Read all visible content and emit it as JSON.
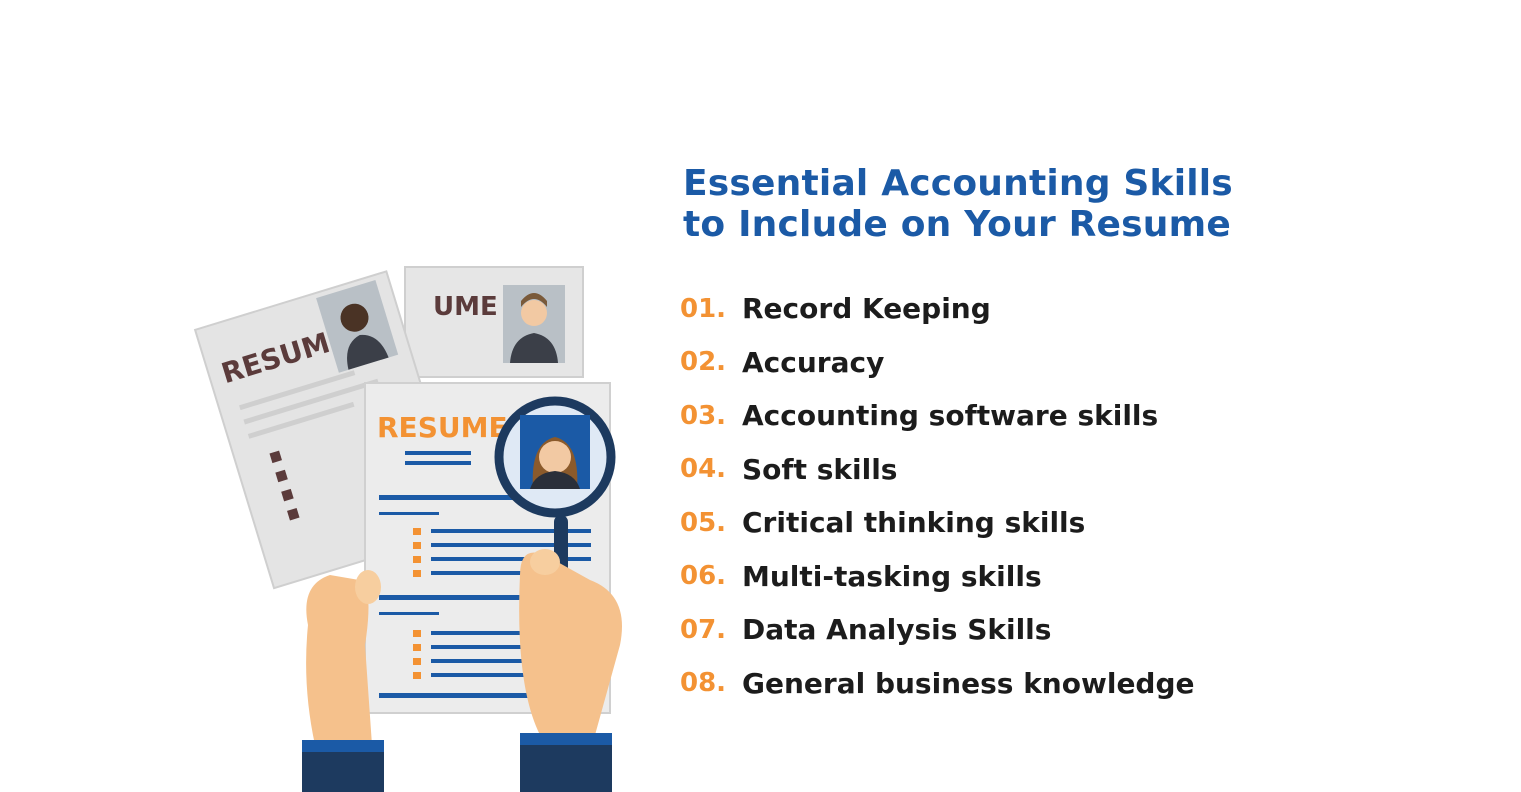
{
  "colors": {
    "title": "#1b5aa6",
    "number": "#f39233",
    "text": "#1c1c1c",
    "resume_back_text": "#5b3b3b",
    "resume_front_text": "#f39233",
    "line_blue": "#1b5aa6"
  },
  "illustration": {
    "icon": "resume-review-illustration",
    "resume_label_back_left": "RESUME",
    "resume_label_back_right": "UME",
    "resume_label_front": "RESUME"
  },
  "title": {
    "line1": "Essential Accounting Skills",
    "line2": "to Include on Your Resume"
  },
  "skills": [
    {
      "number": "01.",
      "label": "Record Keeping"
    },
    {
      "number": "02.",
      "label": "Accuracy"
    },
    {
      "number": "03.",
      "label": "Accounting software skills"
    },
    {
      "number": "04.",
      "label": "Soft skills"
    },
    {
      "number": "05.",
      "label": "Critical thinking skills"
    },
    {
      "number": "06.",
      "label": "Multi-tasking skills"
    },
    {
      "number": "07.",
      "label": "Data Analysis Skills"
    },
    {
      "number": "08.",
      "label": "General business knowledge"
    }
  ]
}
